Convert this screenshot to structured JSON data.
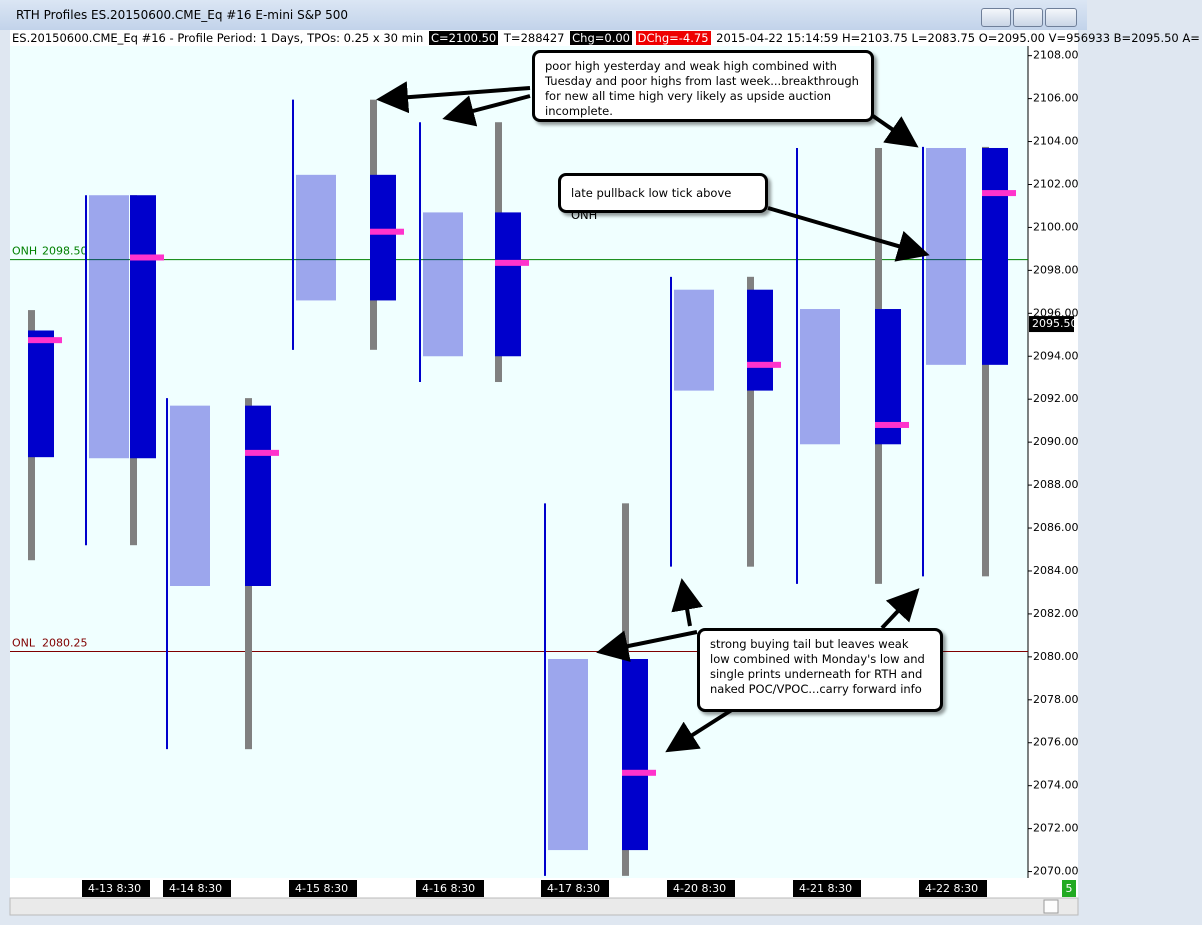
{
  "window": {
    "title": "RTH Profiles  ES.20150600.CME_Eq  #16  E-mini S&P 500"
  },
  "info_bar": {
    "description": "ES.20150600.CME_Eq  #16 - Profile Period: 1 Days, TPOs: 0.25 x 30 min",
    "close": "C=2100.50",
    "ticks": "T=288427",
    "change": "Chg=0.00",
    "day_change": "DChg=-4.75",
    "details": "2015-04-22 15:14:59 H=2103.75 L=2083.75 O=2095.00 V=956933 B=2095.50 A="
  },
  "chart_data": {
    "type": "market-profile",
    "ylim": [
      2069.7,
      2108.45
    ],
    "yticks": [
      {
        "value": 2070,
        "label": "2070.00"
      },
      {
        "value": 2072,
        "label": "2072.00"
      },
      {
        "value": 2074,
        "label": "2074.00"
      },
      {
        "value": 2076,
        "label": "2076.00"
      },
      {
        "value": 2078,
        "label": "2078.00"
      },
      {
        "value": 2080,
        "label": "2080.00"
      },
      {
        "value": 2082,
        "label": "2082.00"
      },
      {
        "value": 2084,
        "label": "2084.00"
      },
      {
        "value": 2086,
        "label": "2086.00"
      },
      {
        "value": 2088,
        "label": "2088.00"
      },
      {
        "value": 2090,
        "label": "2090.00"
      },
      {
        "value": 2092,
        "label": "2092.00"
      },
      {
        "value": 2094,
        "label": "2094.00"
      },
      {
        "value": 2096,
        "label": "2096.00"
      },
      {
        "value": 2098,
        "label": "2098.00"
      },
      {
        "value": 2100,
        "label": "2100.00"
      },
      {
        "value": 2102,
        "label": "2102.00"
      },
      {
        "value": 2104,
        "label": "2104.00"
      },
      {
        "value": 2106,
        "label": "2106.00"
      },
      {
        "value": 2108,
        "label": "2108.00"
      }
    ],
    "last_price": {
      "value": 2095.5,
      "label": "2095.50"
    },
    "reference_lines": [
      {
        "name": "ONH",
        "value": 2098.5,
        "label": "2098.50",
        "color": "#008000"
      },
      {
        "name": "ONL",
        "value": 2080.25,
        "label": "2080.25",
        "color": "#800000"
      }
    ],
    "sessions": [
      {
        "label": null,
        "high": 2096.15,
        "low": 2084.5,
        "poc": 2094.75,
        "value_area": [
          2089.3,
          2095.2
        ]
      },
      {
        "label": "4-13 8:30",
        "high": 2101.5,
        "low": 2085.2,
        "poc": 2098.6,
        "value_area": [
          2089.25,
          2101.5
        ]
      },
      {
        "label": "4-14 8:30",
        "high": 2092.05,
        "low": 2075.7,
        "poc": 2089.5,
        "value_area": [
          2083.3,
          2091.7
        ]
      },
      {
        "label": "4-15 8:30",
        "high": 2105.95,
        "low": 2094.3,
        "poc": 2099.8,
        "value_area": [
          2096.6,
          2102.45
        ]
      },
      {
        "label": "4-16 8:30",
        "high": 2104.9,
        "low": 2092.8,
        "poc": 2098.35,
        "value_area": [
          2094,
          2100.7
        ]
      },
      {
        "label": "4-17 8:30",
        "high": 2087.15,
        "low": 2069.8,
        "poc": 2074.6,
        "value_area": [
          2071,
          2079.9
        ]
      },
      {
        "label": "4-20 8:30",
        "high": 2097.7,
        "low": 2084.2,
        "poc": 2093.6,
        "value_area": [
          2092.4,
          2097.1
        ]
      },
      {
        "label": "4-21 8:30",
        "high": 2103.7,
        "low": 2083.4,
        "poc": 2090.8,
        "value_area": [
          2089.9,
          2096.2
        ]
      },
      {
        "label": "4-22 8:30",
        "high": 2103.75,
        "low": 2083.75,
        "poc": 2101.6,
        "value_area": [
          2093.6,
          2103.7
        ]
      }
    ],
    "colors": {
      "tpo": "#0000cc",
      "volume": "#0000cc",
      "volume_outside": "#808080",
      "poc": "#ff33cc"
    },
    "annotations": [
      "poor high yesterday and weak high combined with Tuesday and poor highs from last week...breakthrough for new all time high very likely as upside auction incomplete.",
      "late pullback low tick above ONH",
      "strong buying tail but leaves weak low combined with Monday's low and single prints underneath for RTH and naked POC/VPOC...carry forward info"
    ],
    "status": "5"
  }
}
